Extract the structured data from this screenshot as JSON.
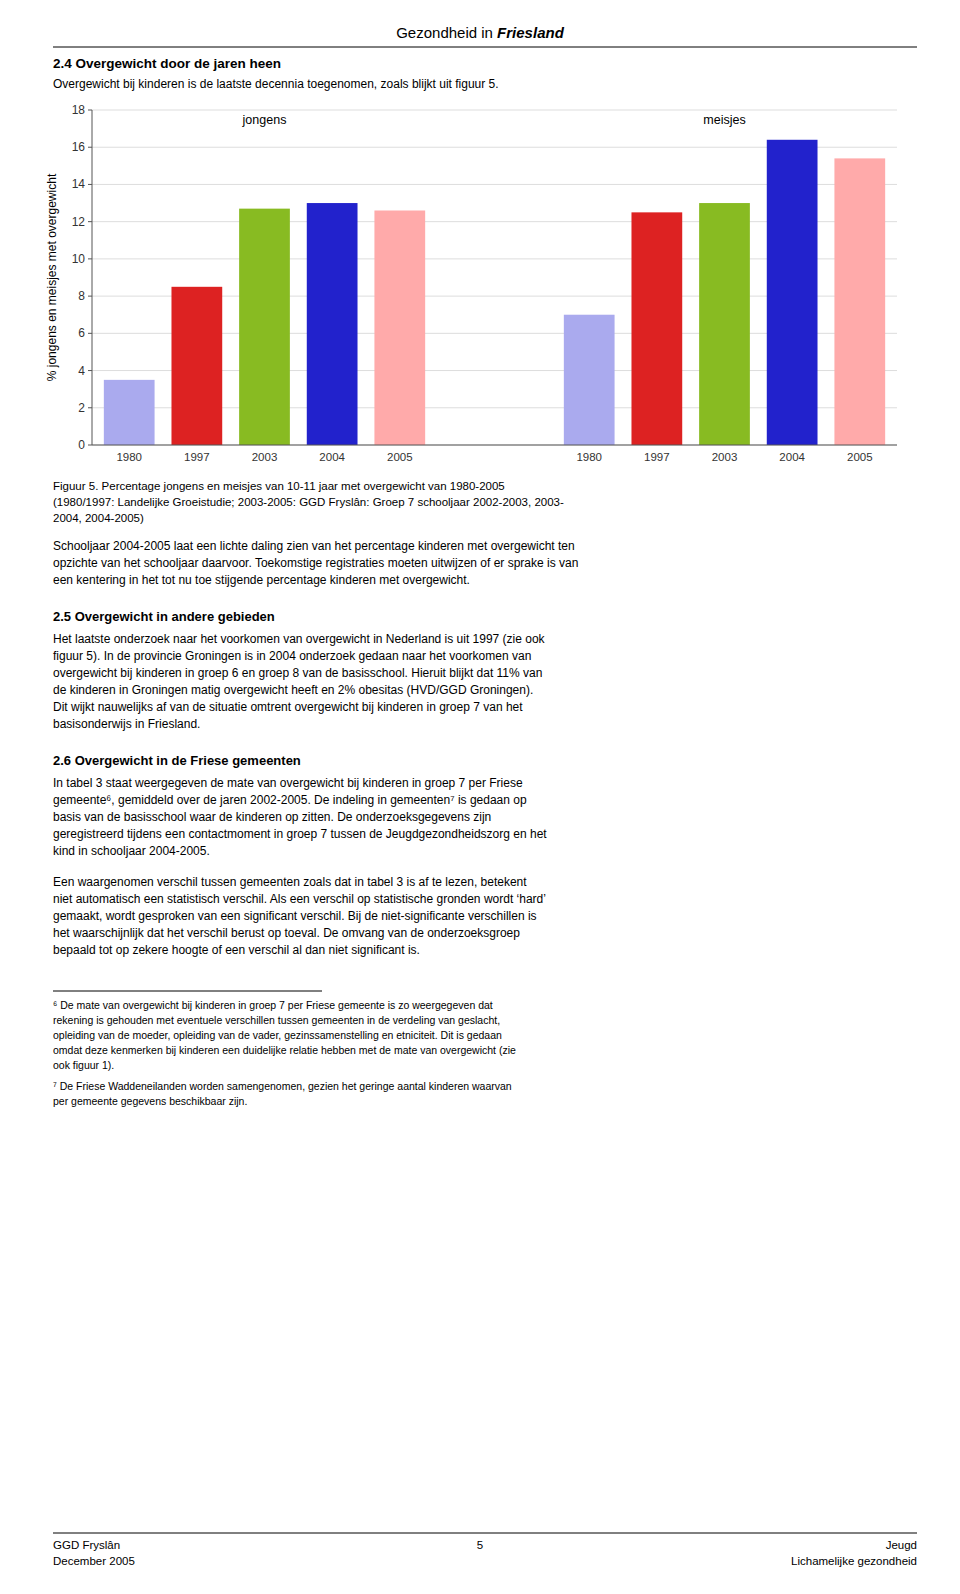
{
  "chart_data": {
    "type": "bar",
    "categories": [
      "1980",
      "1997",
      "2003",
      "2004",
      "2005"
    ],
    "series": [
      {
        "name": "jongens",
        "values": [
          3.5,
          8.5,
          12.7,
          13.0,
          12.6
        ],
        "colors": [
          "#aaaaee",
          "#dd2222",
          "#88bb22",
          "#2222cc",
          "#ffaaaa"
        ]
      },
      {
        "name": "meisjes",
        "values": [
          7.0,
          12.5,
          13.0,
          16.4,
          15.4
        ],
        "colors": [
          "#aaaaee",
          "#dd2222",
          "#88bb22",
          "#2222cc",
          "#ffaaaa"
        ]
      }
    ],
    "y_label": "% jongens en meisjes met overgewicht",
    "ylim": [
      0,
      18
    ],
    "yticks": [
      0,
      2,
      4,
      6,
      8,
      10,
      12,
      14,
      16,
      18
    ],
    "grid": true
  },
  "page": {
    "header": [
      "Gezondheid in ",
      "Friesland"
    ],
    "sections": [
      {
        "heading": "2.4 Overgewicht door de jaren heen",
        "intro": "Overgewicht bij kinderen is de laatste decennia toegenomen, zoals blijkt uit figuur 5.",
        "paragraphs": [
          [
            "Schooljaar 2004-2005 laat een lichte daling zien van het percentage kinderen met overgewicht ten",
            "opzichte van het schooljaar daarvoor. Toekomstige registraties moeten uitwijzen of er sprake is van",
            "een kentering in het tot nu toe stijgende percentage kinderen met overgewicht."
          ]
        ]
      },
      {
        "heading": "2.5 Overgewicht in andere gebieden",
        "paragraphs": [
          [
            "Het laatste onderzoek naar het voorkomen van overgewicht in Nederland is uit 1997 (zie ook",
            "figuur 5). In de provincie Groningen is in 2004 onderzoek gedaan naar het voorkomen van",
            "overgewicht bij kinderen in groep 6 en groep 8 van de basisschool. Hieruit blijkt dat 11% van",
            "de kinderen in Groningen matig overgewicht heeft en 2% obesitas (HVD/GGD Groningen).",
            "Dit wijkt nauwelijks af van de situatie omtrent overgewicht bij kinderen in groep 7 van het",
            "basisonderwijs in Friesland."
          ]
        ]
      },
      {
        "heading": "2.6 Overgewicht in de Friese gemeenten",
        "paragraphs": [
          [
            "In tabel 3 staat weergegeven de mate van overgewicht bij kinderen in groep 7 per Friese",
            "gemeente⁶, gemiddeld over de jaren 2002-2005. De indeling in gemeenten⁷ is gedaan op",
            "basis van de basisschool waar de kinderen op zitten. De onderzoeksgegevens zijn",
            "geregistreerd tijdens een contactmoment in groep 7 tussen de Jeugdgezondheidszorg en het",
            "kind in schooljaar 2004-2005."
          ],
          [
            "Een waargenomen verschil tussen gemeenten zoals dat in tabel 3 is af te lezen, betekent",
            "niet automatisch een statistisch verschil. Als een verschil op statistische gronden wordt ‘hard’",
            "gemaakt, wordt gesproken van een significant verschil. Bij de niet-significante verschillen is",
            "het waarschijnlijk dat het verschil berust op toeval. De omvang van de onderzoeksgroep",
            "bepaald tot op zekere hoogte of een verschil al dan niet significant is."
          ]
        ]
      }
    ],
    "caption": [
      "Figuur 5. Percentage jongens en meisjes van 10-11 jaar met overgewicht van 1980-2005",
      "(1980/1997: Landelijke Groeistudie; 2003-2005: GGD Fryslân: Groep 7 schooljaar 2002-2003, 2003-",
      "2004, 2004-2005)"
    ],
    "footnotes": [
      [
        "⁶ De mate van overgewicht bij kinderen in groep 7 per Friese gemeente is zo weergegeven dat",
        "rekening is gehouden met eventuele verschillen tussen gemeenten in de verdeling van geslacht,",
        "opleiding van de moeder, opleiding van de vader, gezinssamenstelling en etniciteit. Dit is gedaan",
        "omdat deze kenmerken bij kinderen een duidelijke relatie hebben met de mate van overgewicht (zie",
        "ook figuur 1)."
      ],
      [
        "⁷ De Friese Waddeneilanden worden samengenomen, gezien het geringe aantal kinderen waarvan",
        "per gemeente gegevens beschikbaar zijn."
      ]
    ],
    "footer": {
      "left": [
        "GGD Fryslân",
        "December 2005"
      ],
      "center": "5",
      "right": [
        "Jeugd",
        "Lichamelijke gezondheid"
      ]
    }
  }
}
